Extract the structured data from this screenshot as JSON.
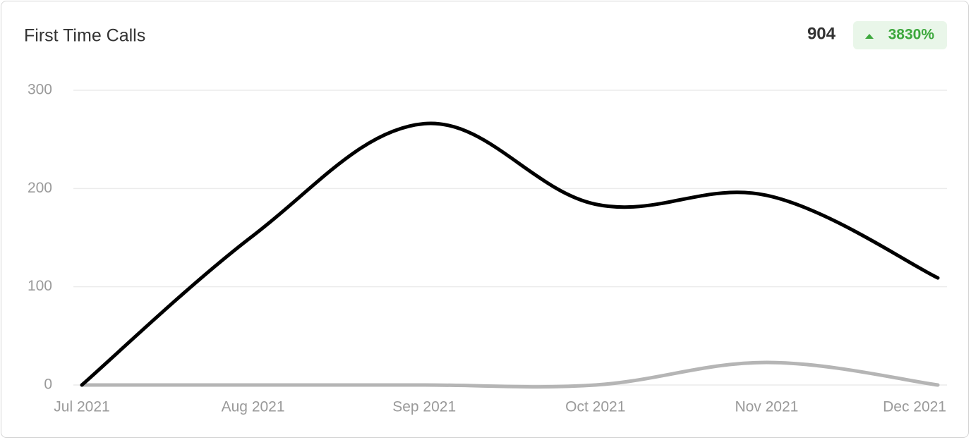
{
  "chart_data": {
    "type": "line",
    "title": "First Time Calls",
    "total": 904,
    "change": "3830%",
    "categories": [
      "Jul 2021",
      "Aug 2021",
      "Sep 2021",
      "Oct 2021",
      "Nov 2021",
      "Dec 2021"
    ],
    "series": [
      {
        "color": "#000000",
        "values": [
          0,
          152,
          266,
          184,
          193,
          109
        ]
      },
      {
        "color": "#b5b5b5",
        "values": [
          0,
          0,
          0,
          0,
          23,
          0
        ]
      }
    ],
    "ylim": [
      0,
      300
    ],
    "yticks": [
      0,
      100,
      200,
      300
    ],
    "grid": true
  }
}
